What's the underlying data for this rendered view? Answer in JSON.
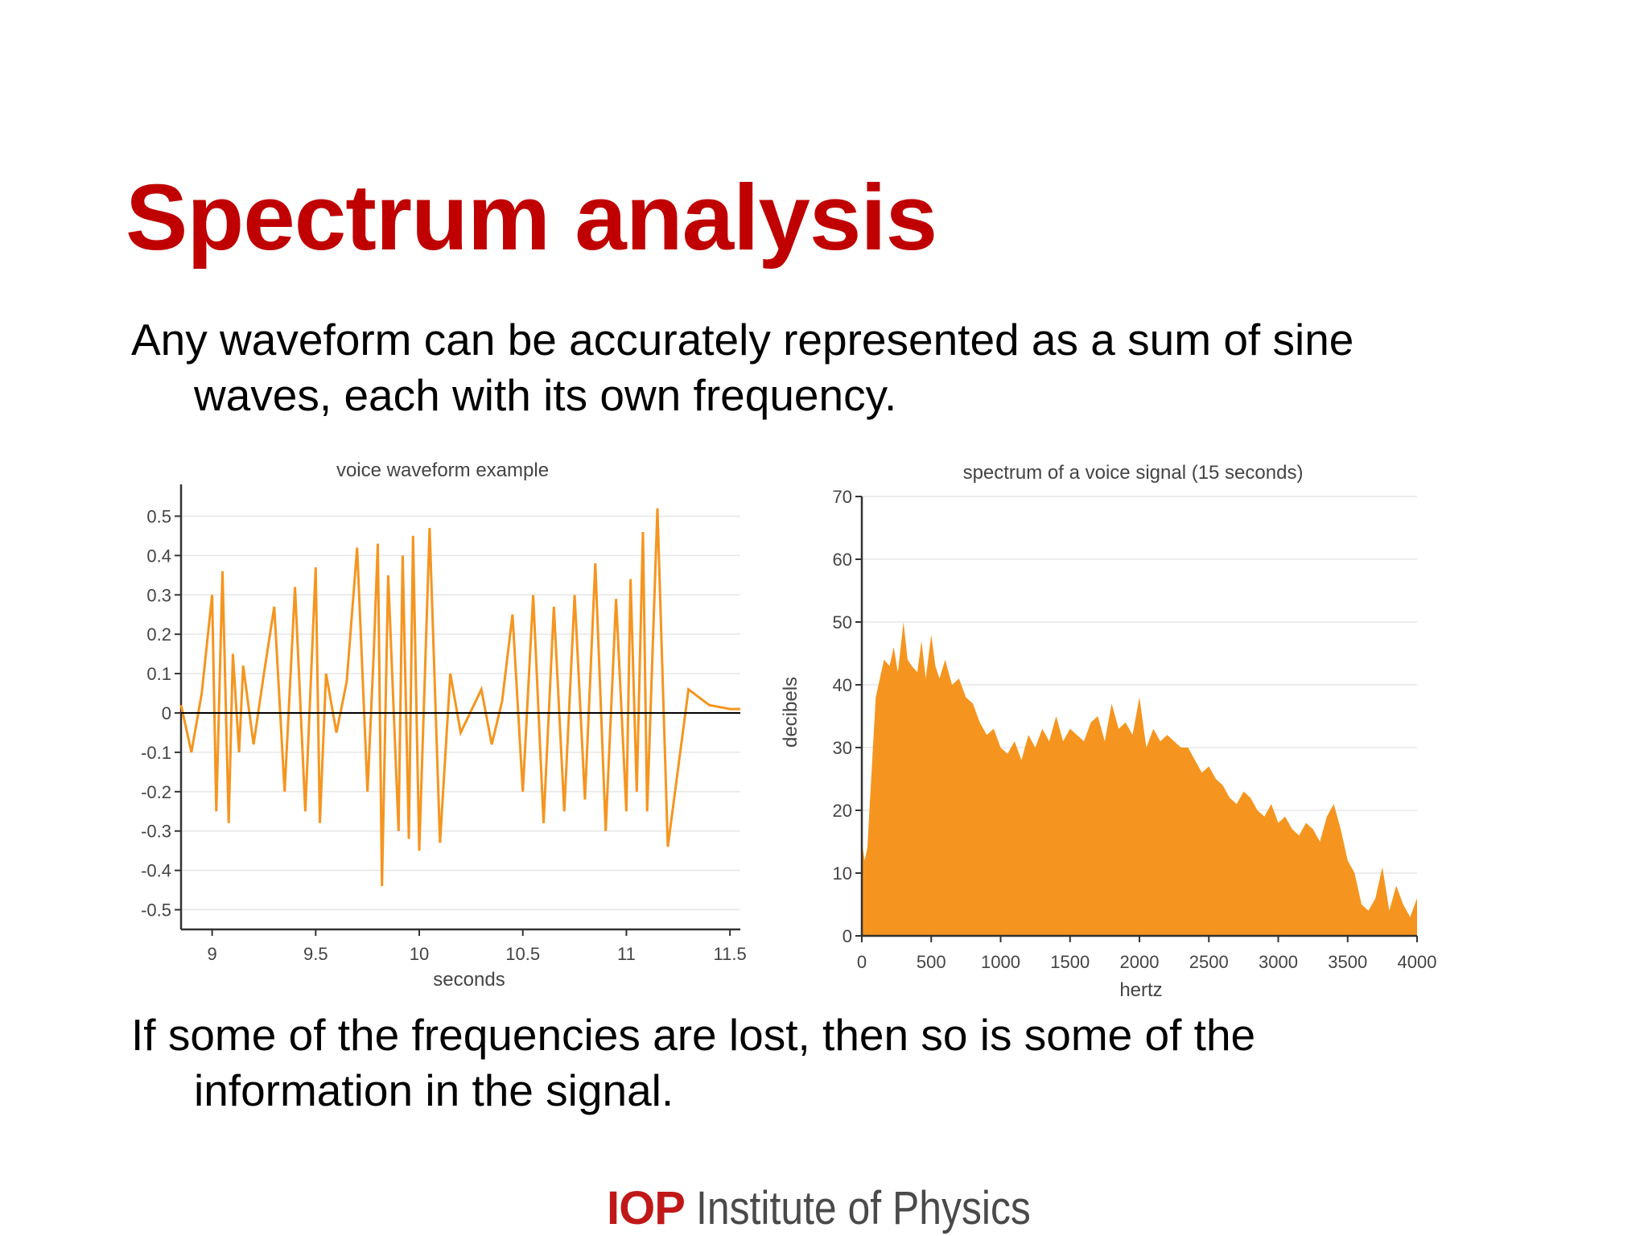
{
  "slide": {
    "title": "Spectrum analysis",
    "bullet1_line1": "Any waveform can be accurately represented as a sum of sine",
    "bullet1_line2": "waves, each with its own frequency.",
    "bullet2_line1": "If some of the frequencies are lost, then so is some of the",
    "bullet2_line2": "information in the signal."
  },
  "footer": {
    "logo_mark": "IOP",
    "logo_text": "Institute of Physics"
  },
  "colors": {
    "title": "#c00000",
    "series": "#f5951f",
    "logo_red": "#c01818"
  },
  "chart_data": [
    {
      "type": "line",
      "title": "voice waveform example",
      "xlabel": "seconds",
      "ylabel": "",
      "xlim": [
        8.85,
        11.55
      ],
      "ylim": [
        -0.55,
        0.55
      ],
      "xticks": [
        "9",
        "9.5",
        "10",
        "10.5",
        "11",
        "11.5"
      ],
      "xtick_values": [
        9,
        9.5,
        10,
        10.5,
        11,
        11.5
      ],
      "yticks": [
        "0.5",
        "0.4",
        "0.3",
        "0.2",
        "0.1",
        "0",
        "-0.1",
        "-0.2",
        "-0.3",
        "-0.4",
        "-0.5"
      ],
      "ytick_values": [
        0.5,
        0.4,
        0.3,
        0.2,
        0.1,
        0,
        -0.1,
        -0.2,
        -0.3,
        -0.4,
        -0.5
      ],
      "grid": true,
      "series": [
        {
          "x": [
            8.85,
            8.9,
            8.95,
            9.0,
            9.02,
            9.05,
            9.08,
            9.1,
            9.13,
            9.15,
            9.2,
            9.25,
            9.3,
            9.35,
            9.4,
            9.45,
            9.5,
            9.52,
            9.55,
            9.6,
            9.65,
            9.7,
            9.75,
            9.78,
            9.8,
            9.82,
            9.85,
            9.9,
            9.92,
            9.95,
            9.97,
            10.0,
            10.05,
            10.1,
            10.15,
            10.2,
            10.3,
            10.35,
            10.4,
            10.45,
            10.5,
            10.55,
            10.6,
            10.65,
            10.7,
            10.75,
            10.8,
            10.85,
            10.9,
            10.95,
            11.0,
            11.02,
            11.05,
            11.08,
            11.1,
            11.15,
            11.2,
            11.3,
            11.4,
            11.5,
            11.55
          ],
          "y": [
            0.02,
            -0.1,
            0.05,
            0.3,
            -0.25,
            0.36,
            -0.28,
            0.15,
            -0.1,
            0.12,
            -0.08,
            0.1,
            0.27,
            -0.2,
            0.32,
            -0.25,
            0.37,
            -0.28,
            0.1,
            -0.05,
            0.08,
            0.42,
            -0.2,
            0.15,
            0.43,
            -0.44,
            0.35,
            -0.3,
            0.4,
            -0.32,
            0.45,
            -0.35,
            0.47,
            -0.33,
            0.1,
            -0.05,
            0.06,
            -0.08,
            0.03,
            0.25,
            -0.2,
            0.3,
            -0.28,
            0.27,
            -0.25,
            0.3,
            -0.22,
            0.38,
            -0.3,
            0.29,
            -0.25,
            0.34,
            -0.2,
            0.46,
            -0.25,
            0.52,
            -0.34,
            0.06,
            0.02,
            0.01,
            0.01
          ]
        }
      ]
    },
    {
      "type": "area",
      "title": "spectrum of a voice signal (15 seconds)",
      "xlabel": "hertz",
      "ylabel": "decibels",
      "xlim": [
        0,
        4000
      ],
      "ylim": [
        0,
        70
      ],
      "xticks": [
        "0",
        "500",
        "1000",
        "1500",
        "2000",
        "2500",
        "3000",
        "3500",
        "4000"
      ],
      "xtick_values": [
        0,
        500,
        1000,
        1500,
        2000,
        2500,
        3000,
        3500,
        4000
      ],
      "yticks": [
        "70",
        "60",
        "50",
        "40",
        "30",
        "20",
        "10",
        "0"
      ],
      "ytick_values": [
        70,
        60,
        50,
        40,
        30,
        20,
        10,
        0
      ],
      "grid": true,
      "series": [
        {
          "x": [
            0,
            20,
            40,
            60,
            80,
            100,
            130,
            160,
            200,
            230,
            260,
            300,
            330,
            360,
            400,
            430,
            460,
            500,
            530,
            560,
            600,
            650,
            700,
            750,
            800,
            850,
            900,
            950,
            1000,
            1050,
            1100,
            1150,
            1200,
            1250,
            1300,
            1350,
            1400,
            1450,
            1500,
            1550,
            1600,
            1650,
            1700,
            1750,
            1800,
            1850,
            1900,
            1950,
            2000,
            2050,
            2100,
            2150,
            2200,
            2250,
            2300,
            2350,
            2400,
            2450,
            2500,
            2550,
            2600,
            2650,
            2700,
            2750,
            2800,
            2850,
            2900,
            2950,
            3000,
            3050,
            3100,
            3150,
            3200,
            3250,
            3300,
            3350,
            3400,
            3450,
            3500,
            3550,
            3600,
            3650,
            3700,
            3750,
            3800,
            3850,
            3900,
            3950,
            4000
          ],
          "y": [
            15,
            12,
            14,
            22,
            30,
            38,
            41,
            44,
            43,
            46,
            42,
            50,
            44,
            43,
            42,
            47,
            41,
            48,
            43,
            41,
            44,
            40,
            41,
            38,
            37,
            34,
            32,
            33,
            30,
            29,
            31,
            28,
            32,
            30,
            33,
            31,
            35,
            31,
            33,
            32,
            31,
            34,
            35,
            31,
            37,
            33,
            34,
            32,
            38,
            30,
            33,
            31,
            32,
            31,
            30,
            30,
            28,
            26,
            27,
            25,
            24,
            22,
            21,
            23,
            22,
            20,
            19,
            21,
            18,
            19,
            17,
            16,
            18,
            17,
            15,
            19,
            21,
            17,
            12,
            10,
            5,
            4,
            6,
            11,
            4,
            8,
            5,
            3,
            6
          ]
        }
      ]
    }
  ]
}
